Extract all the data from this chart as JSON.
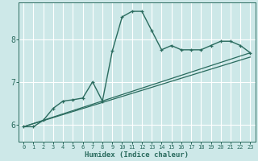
{
  "xlabel": "Humidex (Indice chaleur)",
  "ylabel": "",
  "xlim": [
    -0.5,
    23.5
  ],
  "ylim": [
    5.6,
    8.85
  ],
  "yticks": [
    6,
    7,
    8
  ],
  "xticks": [
    0,
    1,
    2,
    3,
    4,
    5,
    6,
    7,
    8,
    9,
    10,
    11,
    12,
    13,
    14,
    15,
    16,
    17,
    18,
    19,
    20,
    21,
    22,
    23
  ],
  "bg_color": "#cde8e8",
  "line_color": "#2a6b5e",
  "grid_color": "#b8d8d8",
  "line1_x": [
    0,
    1,
    2,
    3,
    4,
    5,
    6,
    7,
    8,
    9,
    10,
    11,
    12,
    13,
    14,
    15,
    16,
    17,
    18,
    19,
    20,
    21,
    22,
    23
  ],
  "line1_y": [
    5.95,
    5.95,
    6.1,
    6.38,
    6.55,
    6.58,
    6.62,
    7.0,
    6.55,
    7.72,
    8.52,
    8.65,
    8.65,
    8.2,
    7.75,
    7.85,
    7.75,
    7.75,
    7.75,
    7.85,
    7.95,
    7.95,
    7.85,
    7.68
  ],
  "line2_x": [
    0,
    23
  ],
  "line2_y": [
    5.95,
    7.68
  ],
  "line3_x": [
    0,
    23
  ],
  "line3_y": [
    5.95,
    7.58
  ]
}
